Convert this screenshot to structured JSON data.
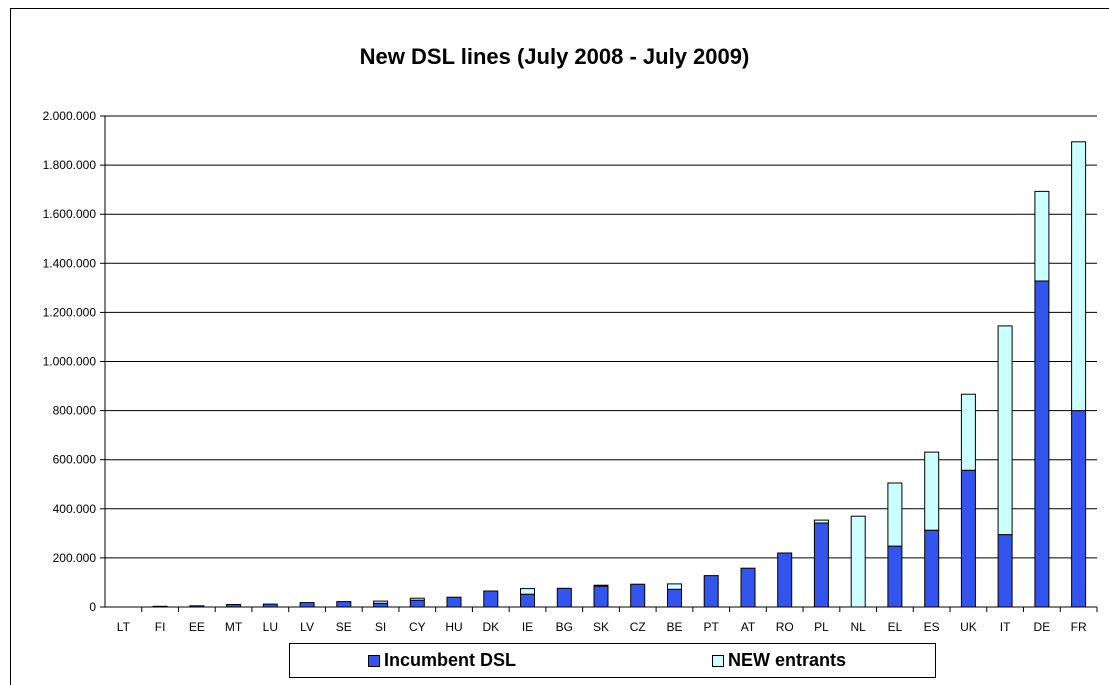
{
  "chart_data": {
    "type": "bar",
    "stacked": true,
    "title": "New DSL lines (July 2008 - July 2009)",
    "xlabel": "",
    "ylabel": "",
    "categories": [
      "LT",
      "FI",
      "EE",
      "MT",
      "LU",
      "LV",
      "SE",
      "SI",
      "CY",
      "HU",
      "DK",
      "IE",
      "BG",
      "SK",
      "CZ",
      "BE",
      "PT",
      "AT",
      "RO",
      "PL",
      "NL",
      "EL",
      "ES",
      "UK",
      "IT",
      "DE",
      "FR"
    ],
    "series": [
      {
        "name": "Incumbent DSL",
        "color": "#3355ee",
        "values": [
          0,
          3000,
          5000,
          10000,
          12000,
          18000,
          22000,
          15000,
          28000,
          40000,
          65000,
          52000,
          76000,
          85000,
          93000,
          72000,
          128000,
          158000,
          220000,
          342000,
          0,
          248000,
          313000,
          557000,
          295000,
          1328000,
          800000
        ]
      },
      {
        "name": "NEW entrants",
        "color": "#ccffff",
        "values": [
          0,
          0,
          0,
          0,
          0,
          0,
          0,
          9000,
          8000,
          0,
          0,
          23000,
          0,
          4000,
          0,
          22000,
          0,
          0,
          0,
          12000,
          370000,
          257000,
          318000,
          310000,
          850000,
          365000,
          1095000
        ]
      }
    ],
    "ylim": [
      0,
      2000000
    ],
    "yticks": [
      "0",
      "200.000",
      "400.000",
      "600.000",
      "800.000",
      "1.000.000",
      "1.200.000",
      "1.400.000",
      "1.600.000",
      "1.800.000",
      "2.000.000"
    ],
    "grid": true,
    "legend_position": "bottom"
  }
}
